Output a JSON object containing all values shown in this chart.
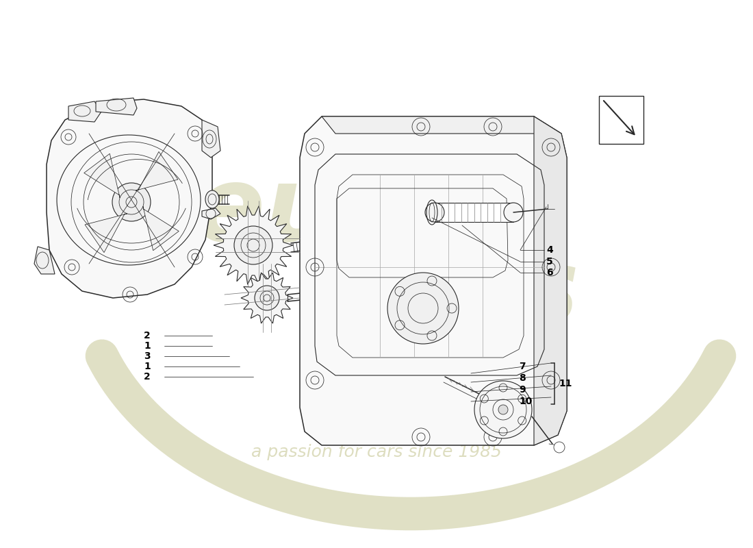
{
  "bg_color": "#ffffff",
  "line_color": "#2a2a2a",
  "label_color": "#000000",
  "wm_color1": "#b8b87a",
  "wm_color2": "#c8c87a",
  "wm_sub": "a passion for cars since 1985",
  "wm_alpha": 0.38,
  "lw_main": 1.1,
  "lw_med": 0.8,
  "lw_thin": 0.55,
  "label_fontsize": 10
}
